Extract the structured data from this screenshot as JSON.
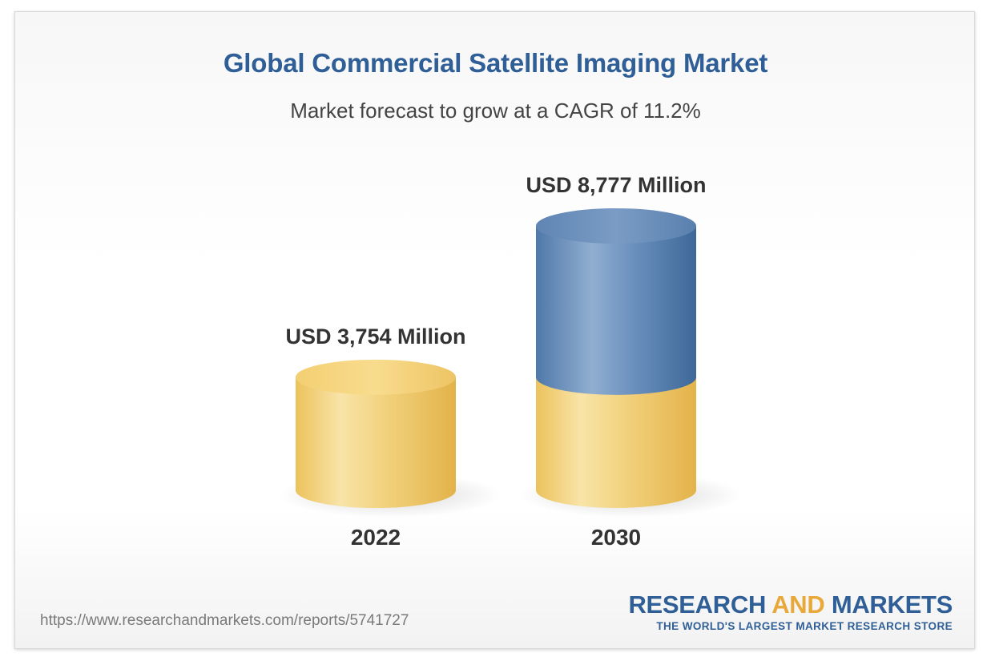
{
  "header": {
    "title": "Global Commercial Satellite Imaging Market",
    "subtitle": "Market forecast to grow at a CAGR of 11.2%"
  },
  "chart_data": {
    "type": "bar",
    "categories": [
      "2022",
      "2030"
    ],
    "values": [
      3754,
      8777
    ],
    "value_labels": [
      "USD 3,754 Million",
      "USD 8,777 Million"
    ],
    "unit": "USD Million",
    "title": "Global Commercial Satellite Imaging Market",
    "subtitle": "Market forecast to grow at a CAGR of 11.2%",
    "xlabel": "",
    "ylabel": "",
    "ylim": [
      0,
      8777
    ],
    "grid": false
  },
  "colors": {
    "base_gold": "#f0c760",
    "growth_blue": "#5b86b8",
    "title_blue": "#2f5f96",
    "brand_gold": "#e8a93a"
  },
  "footer": {
    "source_url": "https://www.researchandmarkets.com/reports/5741727",
    "brand_part_1": "RESEARCH",
    "brand_part_2": "AND",
    "brand_part_3": "MARKETS",
    "brand_tagline": "THE WORLD'S LARGEST MARKET RESEARCH STORE"
  }
}
